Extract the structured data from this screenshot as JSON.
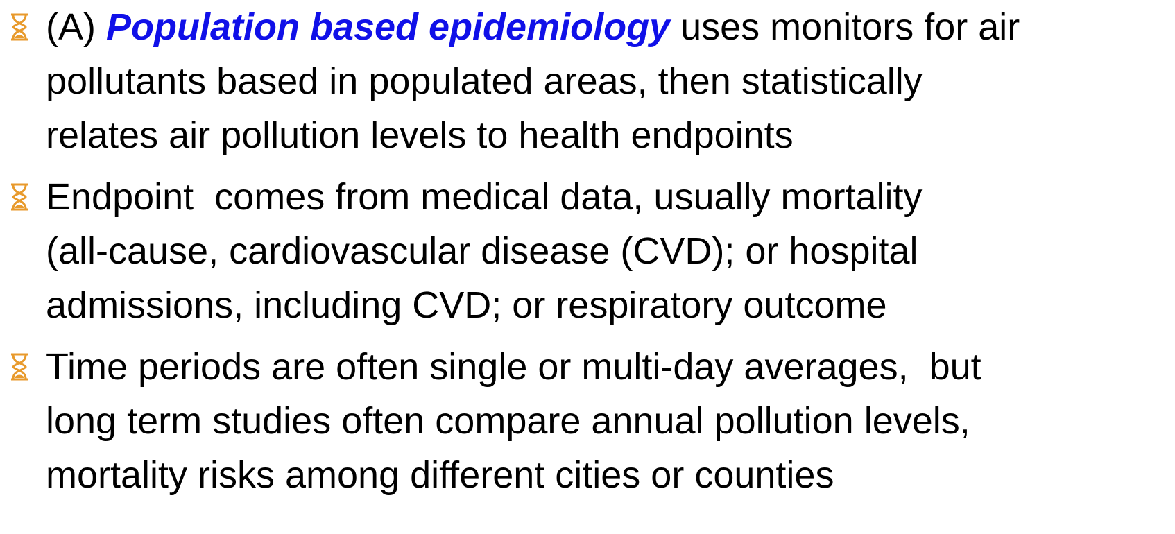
{
  "bullets": [
    {
      "lead": "(A)",
      "term": "Population based epidemiology",
      "rest": "uses monitors for air",
      "lines": [
        "pollutants based in populated areas, then statistically",
        "relates air pollution levels to health endpoints"
      ]
    },
    {
      "lines": [
        "Endpoint  comes from medical data, usually mortality",
        "(all-cause, cardiovascular disease (CVD); or hospital",
        "admissions, including CVD; or respiratory outcome"
      ]
    },
    {
      "lines": [
        "Time periods are often single or multi-day averages,  but",
        "long term studies often compare annual pollution levels,",
        "mortality risks among different cities or counties"
      ]
    }
  ]
}
